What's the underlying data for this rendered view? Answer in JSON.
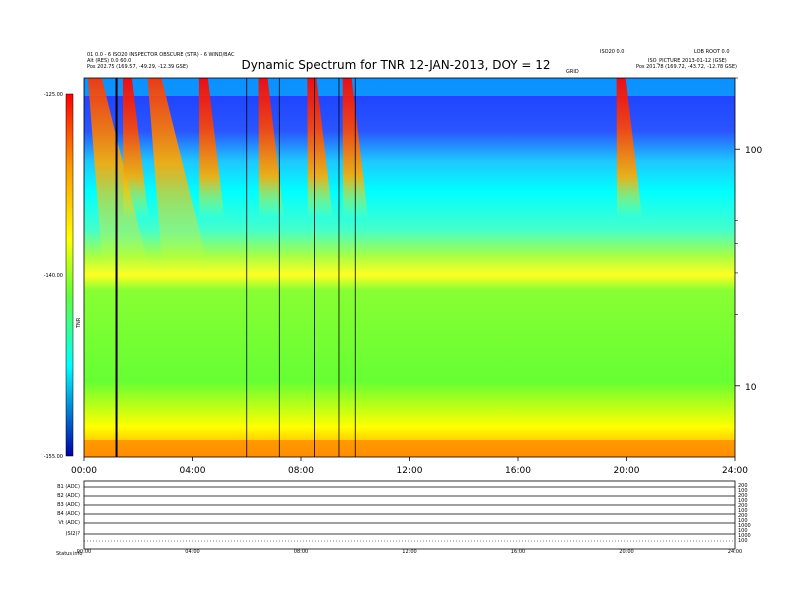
{
  "chart_data": {
    "type": "heatmap",
    "title": "Dynamic Spectrum for TNR 12-JAN-2013, DOY = 12",
    "header_left": [
      "01 0.0 - 6 ISO20 INSPECTOR OBSCURE (STR) - 6 WIND/BAC",
      "Alt (RES) 0.0 60.0",
      "Pos    202.75 (169.57, -49.29, -12.39 GSE)"
    ],
    "header_right": [
      "ISO20 0.0",
      "LOB ROOT 0.0",
      "ISO_PICTURE 2013-01-12 (GSE)",
      "Pos    201.78 (169.72, -43.72, -12.78 GSE)"
    ],
    "marker_label": "GRID",
    "x_tick_labels": [
      "00:00",
      "04:00",
      "08:00",
      "12:00",
      "16:00",
      "20:00",
      "24:00"
    ],
    "x_range_hours": [
      0,
      24
    ],
    "y_right_ticks": [
      10,
      100
    ],
    "y_right_range": [
      5,
      200
    ],
    "y_right_scale": "log",
    "colorbar": {
      "label": "TNR",
      "range": [
        -155.0,
        -125.0
      ],
      "tick_labels": [
        "-125.00",
        "-140.00",
        "-155.00"
      ]
    },
    "vertical_lines_hours": [
      1.2,
      6.0,
      7.2,
      8.5,
      9.4,
      10.0
    ],
    "bursts_hours": [
      0.4,
      1.6,
      2.6,
      4.4,
      6.6,
      8.4,
      9.7,
      19.8
    ],
    "bottom_panel": {
      "left_labels": [
        "B1 (ADC)",
        "B2 (ADC)",
        "B3 (ADC)",
        "B4 (ADC)",
        "Vt (ADC)",
        "(SI2)?"
      ],
      "right_labels": [
        "200",
        "100",
        "200",
        "100",
        "200",
        "100",
        "200",
        "100",
        "1000",
        "100",
        "1000",
        "100"
      ],
      "x_tick_labels": [
        "00:00",
        "04:00",
        "08:00",
        "12:00",
        "16:00",
        "20:00",
        "24:00"
      ],
      "footer_labels": [
        "Status",
        "info"
      ]
    }
  }
}
